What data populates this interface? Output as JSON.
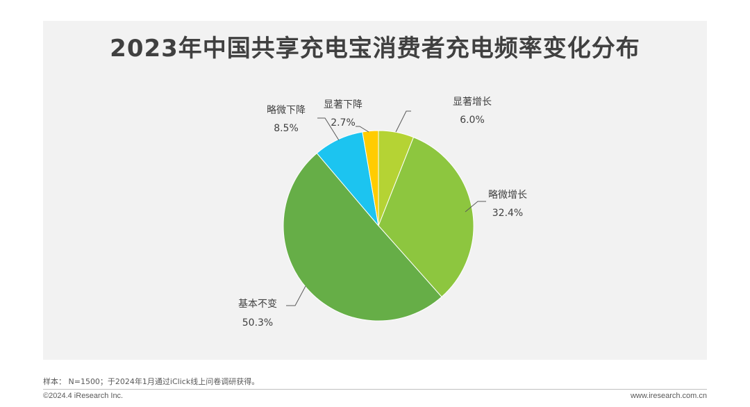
{
  "title": "2023年中国共享充电宝消费者充电频率变化分布",
  "chart_data": {
    "type": "pie",
    "title": "2023年中国共享充电宝消费者充电频率变化分布",
    "slices": [
      {
        "label": "显著增长",
        "value": 6.0,
        "display": "6.0%",
        "color": "#b5d334"
      },
      {
        "label": "略微增长",
        "value": 32.4,
        "display": "32.4%",
        "color": "#8dc63f"
      },
      {
        "label": "基本不变",
        "value": 50.3,
        "display": "50.3%",
        "color": "#66ae47"
      },
      {
        "label": "略微下降",
        "value": 8.5,
        "display": "8.5%",
        "color": "#1cc4f0"
      },
      {
        "label": "显著下降",
        "value": 2.7,
        "display": "2.7%",
        "color": "#ffcc00"
      }
    ]
  },
  "footer": {
    "note": "样本： N=1500；于2024年1月通过iClick线上问卷调研获得。",
    "copyright": "©2024.4 iResearch Inc.",
    "website": "www.iresearch.com.cn"
  }
}
